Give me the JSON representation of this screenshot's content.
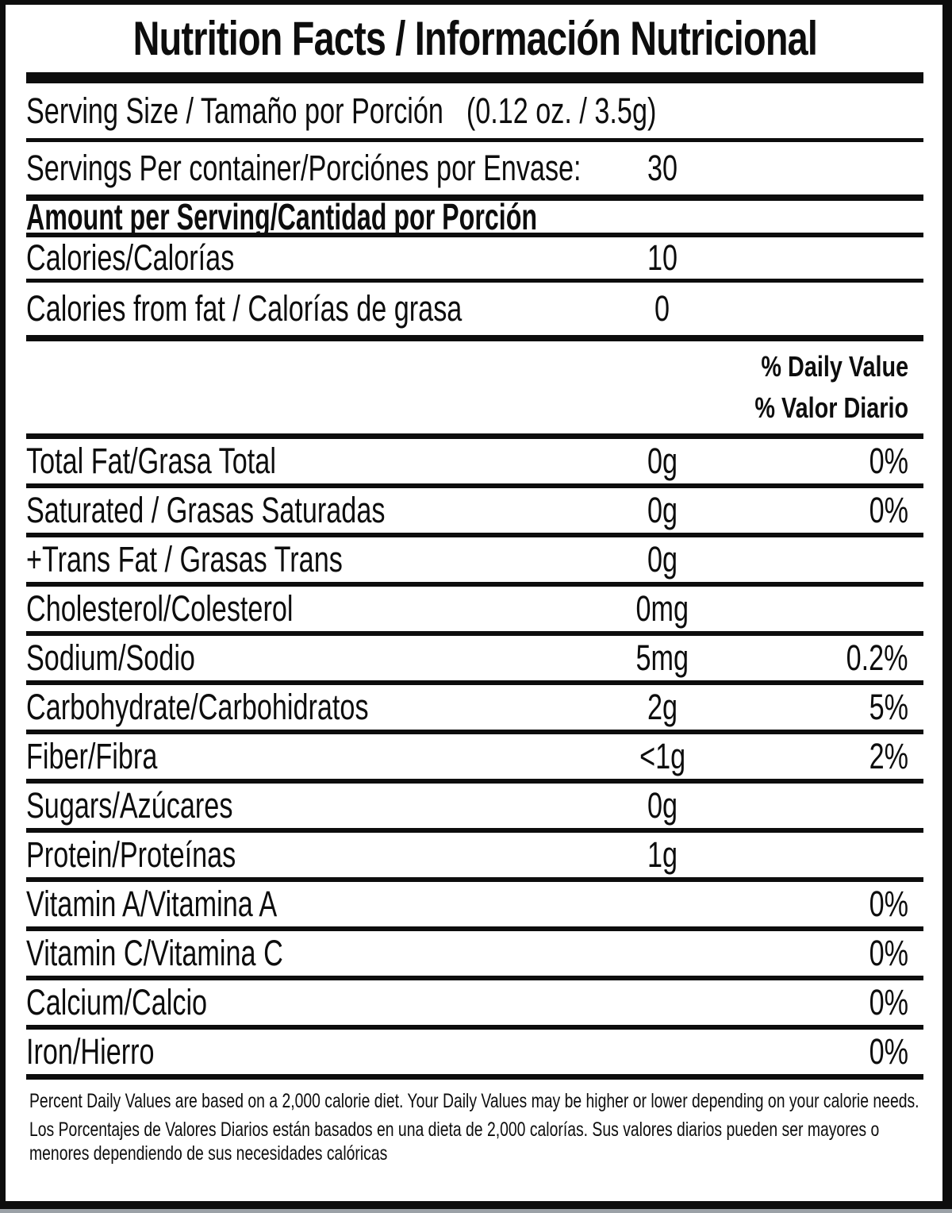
{
  "title": "Nutrition Facts / Información Nutricional",
  "serving_size": {
    "label": "Serving Size / Tamaño por Porción",
    "value": "(0.12 oz. / 3.5g)"
  },
  "servings_per_container": {
    "label": "Servings Per container/Porciónes por Envase:",
    "value": "30"
  },
  "amount_per_serving_header": "Amount per Serving/Cantidad por Porción",
  "calories": {
    "label": "Calories/Calorías",
    "value": "10"
  },
  "calories_from_fat": {
    "label": "Calories from fat / Calorías de grasa",
    "value": "0"
  },
  "daily_value_header": {
    "line1": "% Daily Value",
    "line2": "% Valor Diario"
  },
  "nutrients": [
    {
      "label": "Total Fat/Grasa Total",
      "amount": "0g",
      "percent": "0%"
    },
    {
      "label": "Saturated / Grasas Saturadas",
      "amount": "0g",
      "percent": "0%"
    },
    {
      "label": "+Trans Fat / Grasas Trans",
      "amount": "0g",
      "percent": ""
    },
    {
      "label": "Cholesterol/Colesterol",
      "amount": "0mg",
      "percent": ""
    },
    {
      "label": "Sodium/Sodio",
      "amount": "5mg",
      "percent": "0.2%"
    },
    {
      "label": "Carbohydrate/Carbohidratos",
      "amount": "2g",
      "percent": "5%"
    },
    {
      "label": "Fiber/Fibra",
      "amount": "<1g",
      "percent": "2%"
    },
    {
      "label": "Sugars/Azúcares",
      "amount": "0g",
      "percent": ""
    },
    {
      "label": "Protein/Proteínas",
      "amount": "1g",
      "percent": ""
    },
    {
      "label": "Vitamin A/Vitamina A",
      "amount": "",
      "percent": "0%"
    },
    {
      "label": "Vitamin C/Vitamina C",
      "amount": "",
      "percent": "0%"
    },
    {
      "label": "Calcium/Calcio",
      "amount": "",
      "percent": "0%"
    },
    {
      "label": "Iron/Hierro",
      "amount": "",
      "percent": "0%"
    }
  ],
  "footnotes": {
    "english": "Percent Daily Values are based on a 2,000 calorie diet. Your Daily Values may be higher or lower depending on your calorie needs.",
    "spanish": "Los Porcentajes de Valores Diarios están basados en una dieta de 2,000 calorías. Sus valores diarios pueden ser mayores o menores dependiendo de sus necesidades calóricas"
  },
  "colors": {
    "text": "#0d0d0d",
    "background": "#ffffff",
    "border": "#0d0d0d",
    "bottom_strip": "#9ba1a7"
  }
}
